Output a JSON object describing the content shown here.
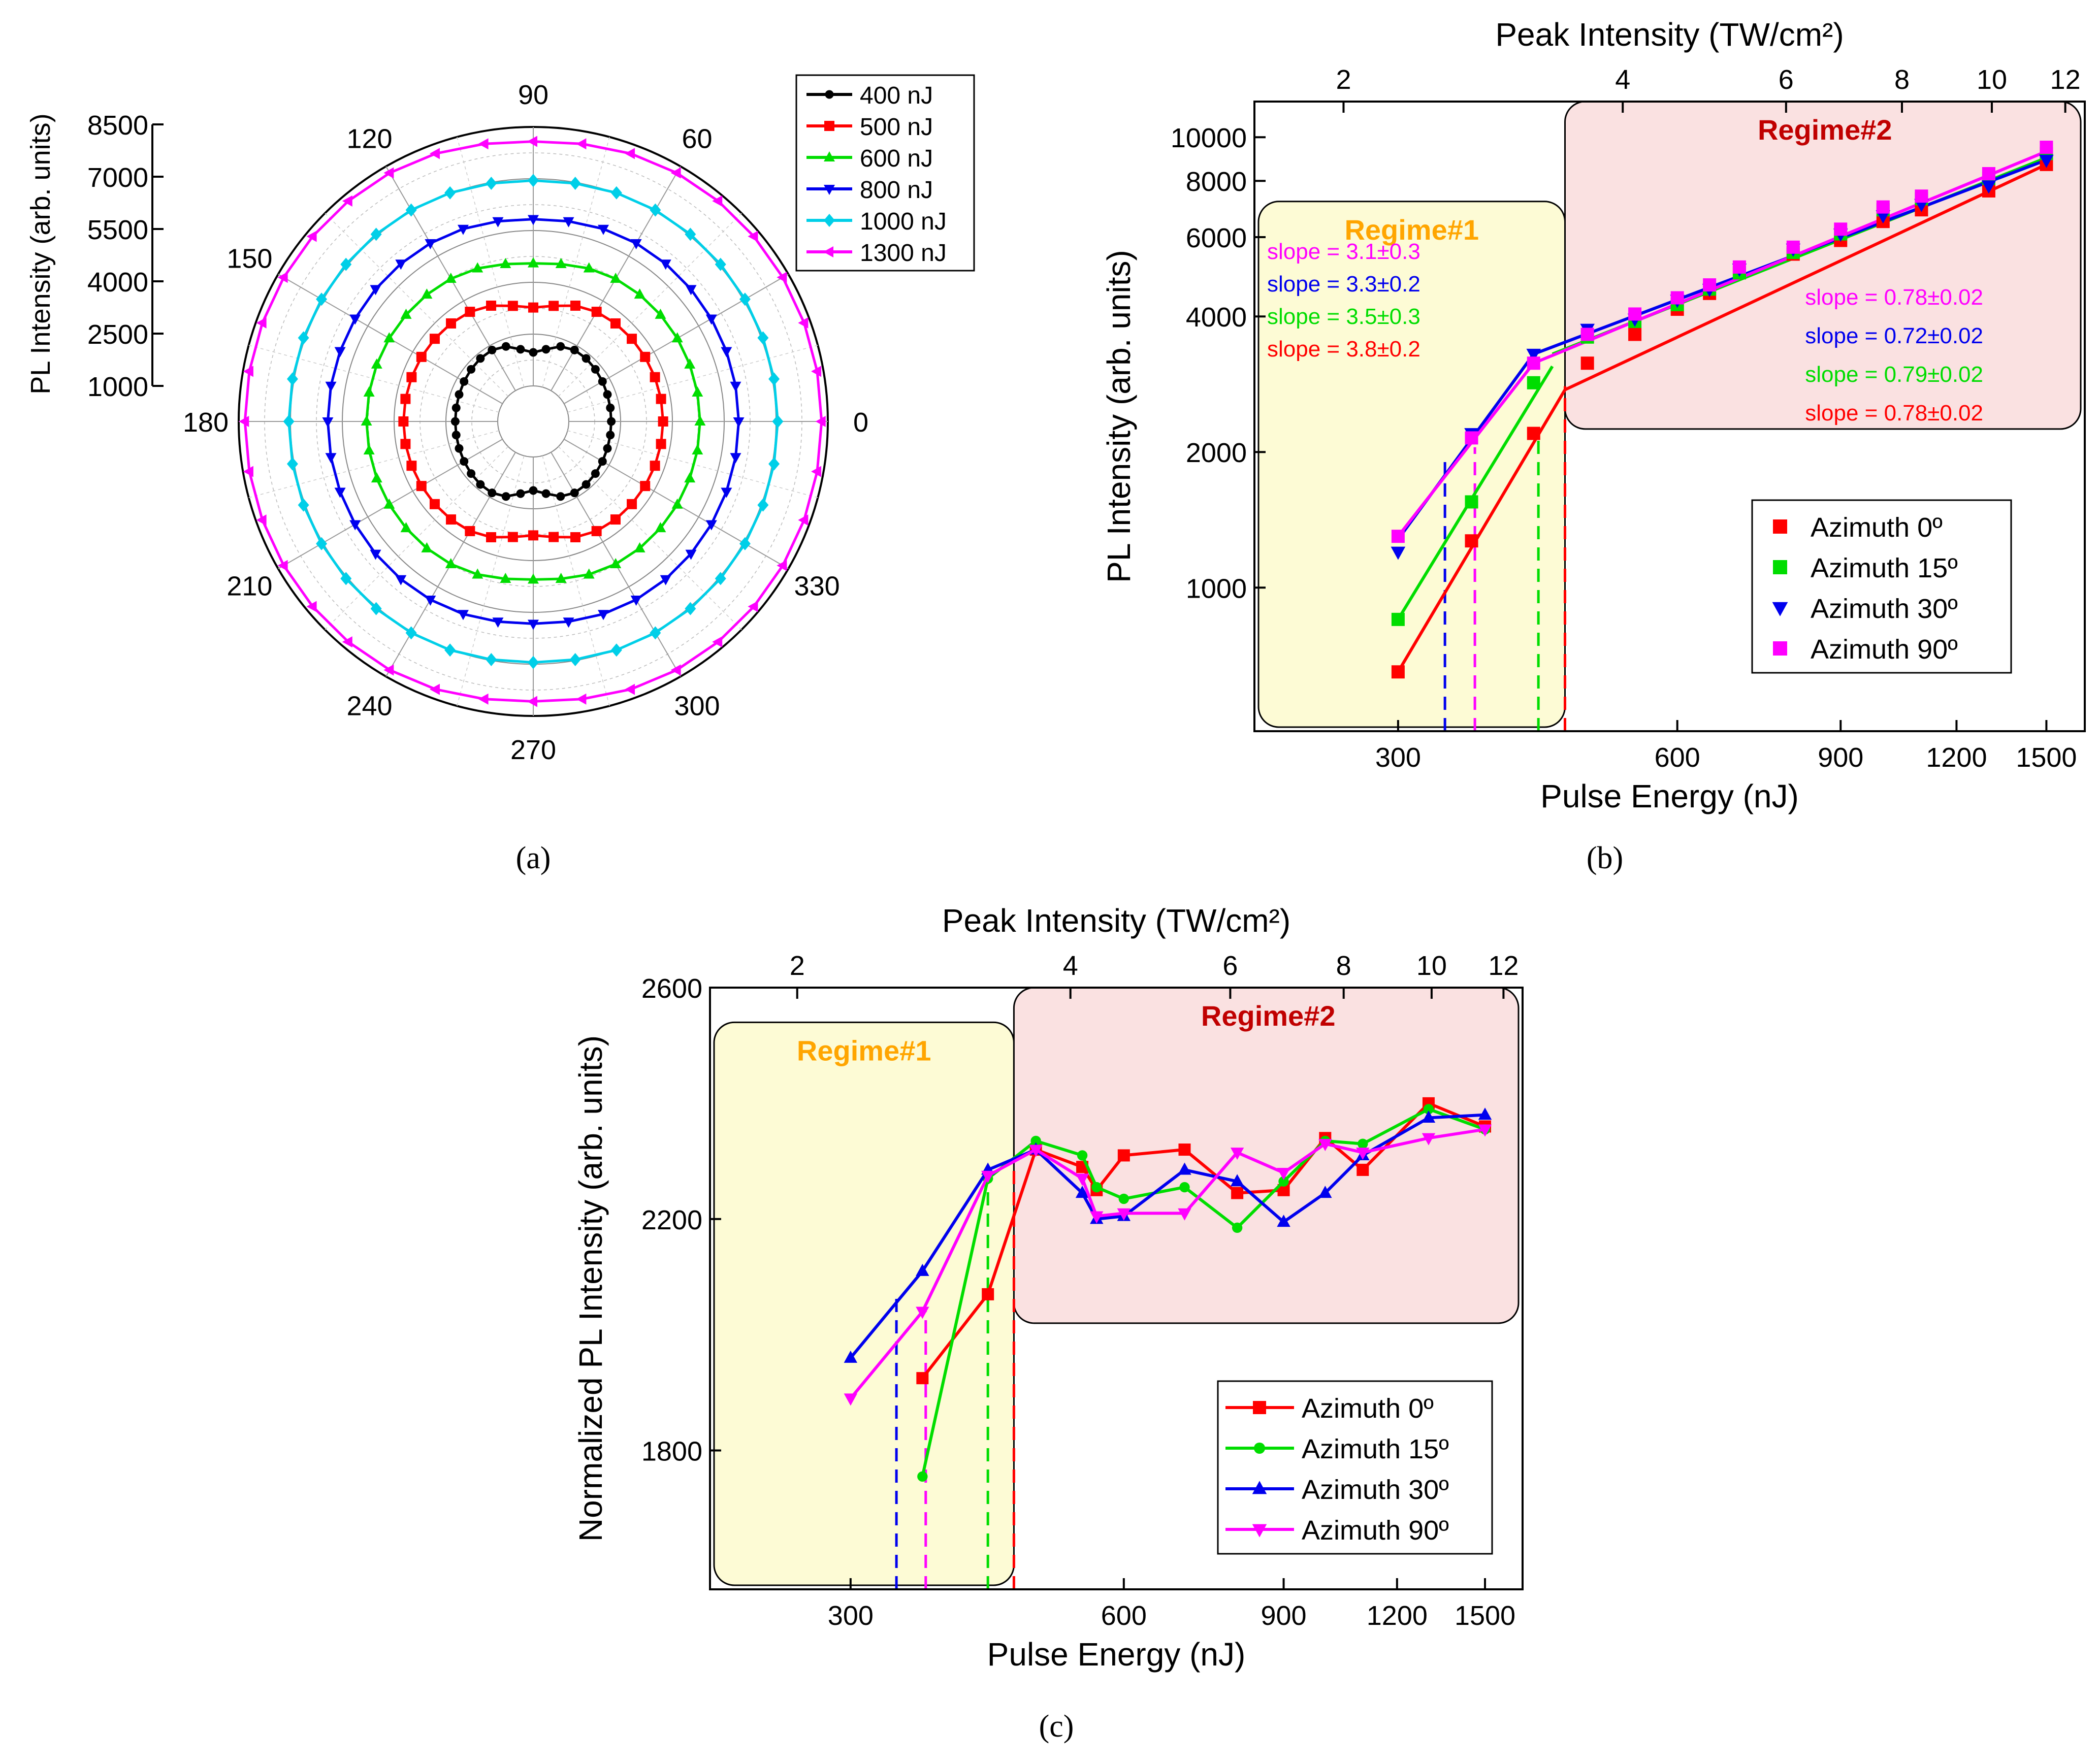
{
  "chart_data": [
    {
      "panel": "a",
      "caption": "(a)",
      "type": "polar-line",
      "radial_axis": {
        "label": "PL Intensity (arb. units)",
        "range": [
          1000,
          8500
        ],
        "ticks": [
          1000,
          2500,
          4000,
          5500,
          7000,
          8500
        ],
        "tick_labels": [
          "1000",
          "2500",
          "4000",
          "5500",
          "7000",
          "8500"
        ]
      },
      "angle_ticks": [
        0,
        30,
        60,
        90,
        120,
        150,
        180,
        210,
        240,
        270,
        300,
        330
      ],
      "angle_tick_labels": [
        "0",
        "30",
        "60",
        "90",
        "120",
        "150",
        "180",
        "210",
        "240",
        "270",
        "300",
        "330"
      ],
      "angle_step_deg": 10,
      "series": [
        {
          "name": "400 nJ",
          "color": "#000000",
          "marker": "circle",
          "r_min": 1750,
          "r_max": 2450,
          "lobe_amp": 480,
          "lobe_width": 0.8
        },
        {
          "name": "500 nJ",
          "color": "#ff0000",
          "marker": "square",
          "r_min": 3350,
          "r_max": 3650,
          "lobe_amp": 380,
          "lobe_width": 0.85
        },
        {
          "name": "600 nJ",
          "color": "#00dd00",
          "marker": "triangle-up",
          "r_min": 4600,
          "r_max": 4750,
          "lobe_amp": 200,
          "lobe_width": 0.9
        },
        {
          "name": "800 nJ",
          "color": "#0000ee",
          "marker": "triangle-down",
          "r_min": 5800,
          "r_max": 5950,
          "lobe_amp": 120,
          "lobe_width": 0.9
        },
        {
          "name": "1000 nJ",
          "color": "#00cfe8",
          "marker": "diamond",
          "r_min": 6950,
          "r_max": 7050,
          "lobe_amp": 100,
          "lobe_width": 0.9
        },
        {
          "name": "1300 nJ",
          "color": "#ff00ff",
          "marker": "triangle-left",
          "r_min": 8100,
          "r_max": 8300,
          "lobe_amp": 220,
          "lobe_width": 0.9
        }
      ]
    },
    {
      "panel": "b",
      "caption": "(b)",
      "type": "scatter-loglog",
      "xlabel": "Pulse Energy (nJ)",
      "ylabel": "PL Intensity (arb. units)",
      "top_xlabel": "Peak Intensity (TW/cm²)",
      "xlim": [
        210,
        1650
      ],
      "ylim": [
        480,
        12000
      ],
      "x_ticks": [
        300,
        600,
        900,
        1200,
        1500
      ],
      "y_ticks": [
        1000,
        2000,
        4000,
        6000,
        8000,
        10000
      ],
      "top_ticks": [
        2,
        4,
        6,
        8,
        10,
        12
      ],
      "top_scale_nj_per_twcm2": 131,
      "regimes": [
        {
          "label": "Regime#1",
          "x_range": [
            210,
            454
          ],
          "y_range": [
            480,
            7200
          ],
          "fill": "#fdfbd5",
          "text_color": "#ffa500"
        },
        {
          "label": "Regime#2",
          "x_range": [
            454,
            1650
          ],
          "y_range": [
            2250,
            12000
          ],
          "fill": "#fae1e1",
          "text_color": "#c00000"
        }
      ],
      "thresholds": [
        {
          "x": 337,
          "y_top": 1900,
          "color": "#0000ee"
        },
        {
          "x": 363,
          "y_top": 2050,
          "color": "#ff00ff"
        },
        {
          "x": 425,
          "y_top": 2250,
          "color": "#00dd00"
        },
        {
          "x": 454,
          "y_top": 2800,
          "color": "#ff0000"
        }
      ],
      "slopes_regime1": [
        {
          "text": "slope = 3.1±0.3",
          "color": "#ff00ff"
        },
        {
          "text": "slope = 3.3±0.2",
          "color": "#0000ee"
        },
        {
          "text": "slope = 3.5±0.3",
          "color": "#00dd00"
        },
        {
          "text": "slope = 3.8±0.2",
          "color": "#ff0000"
        }
      ],
      "slopes_regime2": [
        {
          "text": "slope = 0.78±0.02",
          "color": "#ff00ff"
        },
        {
          "text": "slope = 0.72±0.02",
          "color": "#0000ee"
        },
        {
          "text": "slope = 0.79±0.02",
          "color": "#00dd00"
        },
        {
          "text": "slope = 0.78±0.02",
          "color": "#ff0000"
        }
      ],
      "series": [
        {
          "name": "Azimuth 0º",
          "color": "#ff0000",
          "marker": "square",
          "points": [
            [
              300,
              650
            ],
            [
              360,
              1270
            ],
            [
              420,
              2200
            ],
            [
              480,
              3150
            ],
            [
              540,
              3650
            ],
            [
              600,
              4150
            ],
            [
              650,
              4500
            ],
            [
              700,
              5000
            ],
            [
              800,
              5500
            ],
            [
              900,
              5900
            ],
            [
              1000,
              6500
            ],
            [
              1100,
              6900
            ],
            [
              1300,
              7600
            ],
            [
              1500,
              8700
            ]
          ],
          "fit1": [
            [
              300,
              650
            ],
            [
              454,
              2750
            ]
          ],
          "fit2": [
            [
              454,
              2750
            ],
            [
              1500,
              8700
            ]
          ]
        },
        {
          "name": "Azimuth 15º",
          "color": "#00dd00",
          "marker": "square",
          "points": [
            [
              300,
              850
            ],
            [
              360,
              1550
            ],
            [
              420,
              2850
            ],
            [
              480,
              3600
            ],
            [
              540,
              3900
            ],
            [
              600,
              4250
            ],
            [
              650,
              4600
            ],
            [
              700,
              5000
            ],
            [
              800,
              5550
            ],
            [
              900,
              6100
            ],
            [
              1000,
              6900
            ],
            [
              1100,
              7300
            ],
            [
              1300,
              8100
            ],
            [
              1500,
              9200
            ]
          ],
          "fit1": [
            [
              300,
              850
            ],
            [
              440,
              3100
            ]
          ],
          "fit2": [
            [
              440,
              3300
            ],
            [
              1500,
              9000
            ]
          ]
        },
        {
          "name": "Azimuth 30º",
          "color": "#0000ee",
          "marker": "triangle-down",
          "points": [
            [
              300,
              1200
            ],
            [
              360,
              2200
            ],
            [
              420,
              3300
            ],
            [
              480,
              3750
            ],
            [
              540,
              3950
            ],
            [
              600,
              4350
            ],
            [
              650,
              4600
            ],
            [
              700,
              5100
            ],
            [
              800,
              5650
            ],
            [
              900,
              6100
            ],
            [
              1000,
              6700
            ],
            [
              1100,
              7100
            ],
            [
              1300,
              7800
            ],
            [
              1500,
              8900
            ]
          ],
          "fit1": [
            [
              300,
              1280
            ],
            [
              420,
              3300
            ]
          ],
          "fit2": [
            [
              420,
              3300
            ],
            [
              1500,
              8900
            ]
          ]
        },
        {
          "name": "Azimuth 90º",
          "color": "#ff00ff",
          "marker": "square",
          "points": [
            [
              300,
              1300
            ],
            [
              360,
              2150
            ],
            [
              420,
              3150
            ],
            [
              480,
              3650
            ],
            [
              540,
              4050
            ],
            [
              600,
              4400
            ],
            [
              650,
              4700
            ],
            [
              700,
              5150
            ],
            [
              800,
              5700
            ],
            [
              900,
              6250
            ],
            [
              1000,
              7000
            ],
            [
              1100,
              7400
            ],
            [
              1300,
              8300
            ],
            [
              1500,
              9500
            ]
          ],
          "fit1": [
            [
              300,
              1300
            ],
            [
              420,
              3150
            ]
          ],
          "fit2": [
            [
              420,
              3150
            ],
            [
              1500,
              9300
            ]
          ]
        }
      ]
    },
    {
      "panel": "c",
      "caption": "(c)",
      "type": "line",
      "xlabel": "Pulse Energy (nJ)",
      "ylabel": "Normalized PL Intensity (arb. units)",
      "top_xlabel": "Peak Intensity (TW/cm²)",
      "xlim": [
        210,
        1650
      ],
      "ylim": [
        1560,
        2600
      ],
      "x_ticks": [
        300,
        600,
        900,
        1200,
        1500
      ],
      "y_ticks": [
        1800,
        2200,
        2600
      ],
      "top_ticks": [
        2,
        4,
        6,
        8,
        10,
        12
      ],
      "top_scale_nj_per_twcm2": 131,
      "regimes": [
        {
          "label": "Regime#1",
          "x_range": [
            210,
            454
          ],
          "y_range": [
            1560,
            2540
          ],
          "fill": "#fdfbd5",
          "text_color": "#ffa500"
        },
        {
          "label": "Regime#2",
          "x_range": [
            454,
            1650
          ],
          "y_range": [
            2020,
            2600
          ],
          "fill": "#fae1e1",
          "text_color": "#c00000"
        }
      ],
      "thresholds": [
        {
          "x": 337,
          "y_top": 2075,
          "color": "#0000ee"
        },
        {
          "x": 363,
          "y_top": 2040,
          "color": "#ff00ff"
        },
        {
          "x": 425,
          "y_top": 2270,
          "color": "#00dd00"
        },
        {
          "x": 454,
          "y_top": 2300,
          "color": "#ff0000"
        }
      ],
      "series": [
        {
          "name": "Azimuth 0º",
          "color": "#ff0000",
          "marker": "square",
          "points": [
            [
              360,
              1925
            ],
            [
              425,
              2070
            ],
            [
              480,
              2320
            ],
            [
              540,
              2290
            ],
            [
              560,
              2250
            ],
            [
              600,
              2310
            ],
            [
              700,
              2320
            ],
            [
              800,
              2245
            ],
            [
              900,
              2250
            ],
            [
              1000,
              2340
            ],
            [
              1100,
              2285
            ],
            [
              1300,
              2400
            ],
            [
              1500,
              2360
            ]
          ]
        },
        {
          "name": "Azimuth 15º",
          "color": "#00dd00",
          "marker": "circle",
          "points": [
            [
              360,
              1755
            ],
            [
              425,
              2270
            ],
            [
              480,
              2335
            ],
            [
              540,
              2310
            ],
            [
              560,
              2255
            ],
            [
              600,
              2235
            ],
            [
              700,
              2255
            ],
            [
              800,
              2185
            ],
            [
              900,
              2265
            ],
            [
              1000,
              2335
            ],
            [
              1100,
              2330
            ],
            [
              1300,
              2390
            ],
            [
              1500,
              2355
            ]
          ]
        },
        {
          "name": "Azimuth 30º",
          "color": "#0000ee",
          "marker": "triangle-up",
          "points": [
            [
              300,
              1960
            ],
            [
              360,
              2110
            ],
            [
              425,
              2285
            ],
            [
              480,
              2320
            ],
            [
              540,
              2245
            ],
            [
              560,
              2200
            ],
            [
              600,
              2205
            ],
            [
              700,
              2285
            ],
            [
              800,
              2265
            ],
            [
              900,
              2195
            ],
            [
              1000,
              2245
            ],
            [
              1100,
              2310
            ],
            [
              1300,
              2375
            ],
            [
              1500,
              2380
            ]
          ]
        },
        {
          "name": "Azimuth 90º",
          "color": "#ff00ff",
          "marker": "triangle-down",
          "points": [
            [
              300,
              1890
            ],
            [
              360,
              2040
            ],
            [
              425,
              2275
            ],
            [
              480,
              2320
            ],
            [
              540,
              2270
            ],
            [
              560,
              2205
            ],
            [
              600,
              2210
            ],
            [
              700,
              2210
            ],
            [
              800,
              2315
            ],
            [
              900,
              2280
            ],
            [
              1000,
              2330
            ],
            [
              1100,
              2315
            ],
            [
              1300,
              2340
            ],
            [
              1500,
              2355
            ]
          ]
        }
      ]
    }
  ]
}
